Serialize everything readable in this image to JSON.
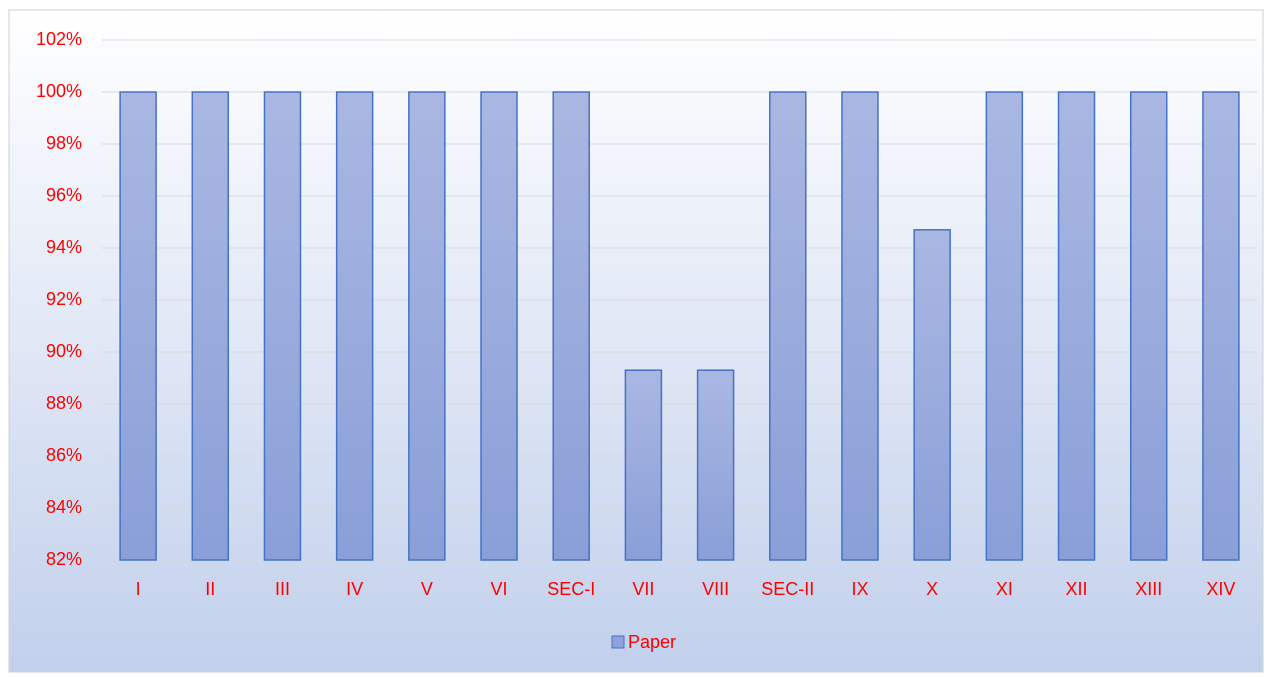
{
  "chart_data": {
    "type": "bar",
    "categories": [
      "I",
      "II",
      "III",
      "IV",
      "V",
      "VI",
      "SEC-I",
      "VII",
      "VIII",
      "SEC-II",
      "IX",
      "X",
      "XI",
      "XII",
      "XIII",
      "XIV"
    ],
    "series": [
      {
        "name": "Paper",
        "color": "#8fa2d9",
        "values": [
          100,
          100,
          100,
          100,
          100,
          100,
          100,
          89.3,
          89.3,
          100,
          100,
          94.7,
          100,
          100,
          100,
          100
        ]
      }
    ],
    "ylim": [
      82,
      102
    ],
    "yticks": [
      {
        "value": 82,
        "label": "82%"
      },
      {
        "value": 84,
        "label": "84%"
      },
      {
        "value": 86,
        "label": "86%"
      },
      {
        "value": 88,
        "label": "88%"
      },
      {
        "value": 90,
        "label": "90%"
      },
      {
        "value": 92,
        "label": "92%"
      },
      {
        "value": 94,
        "label": "94%"
      },
      {
        "value": 96,
        "label": "96%"
      },
      {
        "value": 98,
        "label": "98%"
      },
      {
        "value": 100,
        "label": "100%"
      },
      {
        "value": 102,
        "label": "102%"
      }
    ],
    "grid": true,
    "legend": "bottom"
  }
}
